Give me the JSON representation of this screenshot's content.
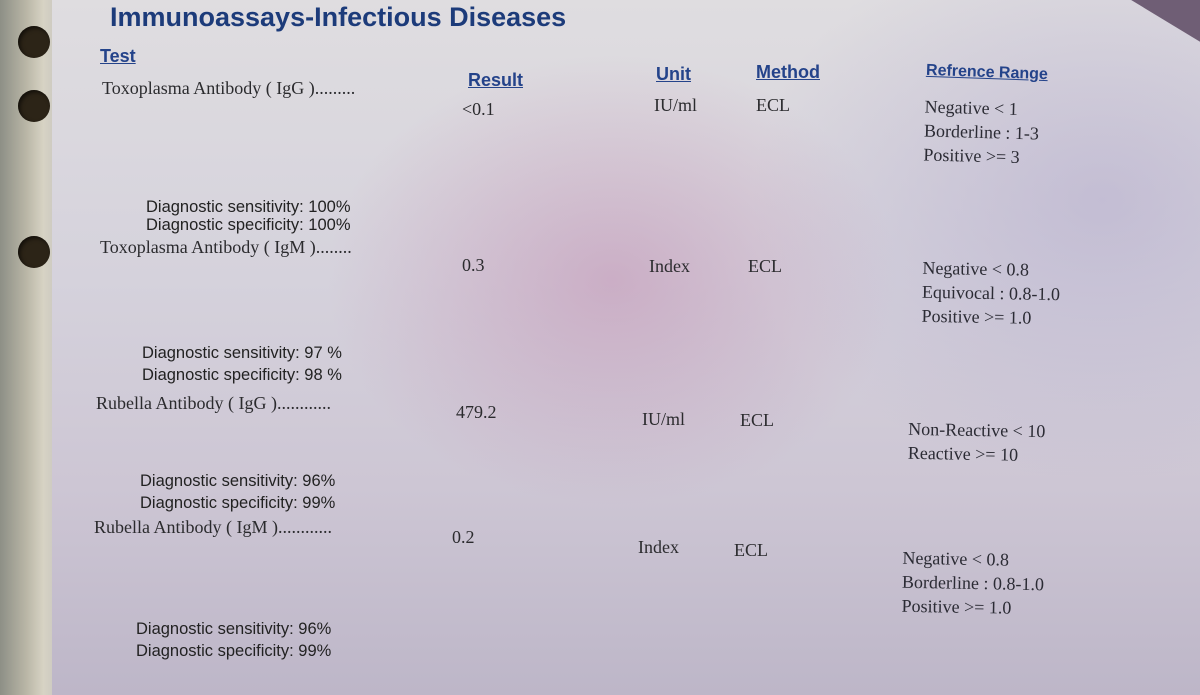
{
  "report": {
    "title": "Immunoassays-Infectious Diseases",
    "headers": {
      "test": "Test",
      "result": "Result",
      "unit": "Unit",
      "method": "Method",
      "reference": "Refrence Range"
    }
  },
  "tests": [
    {
      "name": "Toxoplasma Antibody ( IgG ).........",
      "result": "<0.1",
      "unit": "IU/ml",
      "method": "ECL",
      "ranges": [
        "Negative < 1",
        "Borderline : 1-3",
        "Positive >= 3"
      ],
      "sensitivity": "Diagnostic sensitivity: 100%",
      "specificity": "Diagnostic specificity: 100%"
    },
    {
      "name": "Toxoplasma Antibody ( IgM )........",
      "result": "0.3",
      "unit": "Index",
      "method": "ECL",
      "ranges": [
        "Negative < 0.8",
        "Equivocal : 0.8-1.0",
        "Positive >= 1.0"
      ],
      "sensitivity": "Diagnostic sensitivity: 97 %",
      "specificity": "Diagnostic specificity: 98 %"
    },
    {
      "name": "Rubella Antibody ( IgG )............",
      "result": "479.2",
      "unit": "IU/ml",
      "method": "ECL",
      "ranges": [
        "Non-Reactive < 10",
        "Reactive >= 10"
      ],
      "sensitivity": "Diagnostic sensitivity: 96%",
      "specificity": "Diagnostic specificity: 99%"
    },
    {
      "name": "Rubella Antibody ( IgM )............",
      "result": "0.2",
      "unit": "Index",
      "method": "ECL",
      "ranges": [
        "Negative < 0.8",
        "Borderline : 0.8-1.0",
        "Positive >= 1.0"
      ],
      "sensitivity": "Diagnostic sensitivity: 96%",
      "specificity": "Diagnostic specificity: 99%"
    }
  ]
}
